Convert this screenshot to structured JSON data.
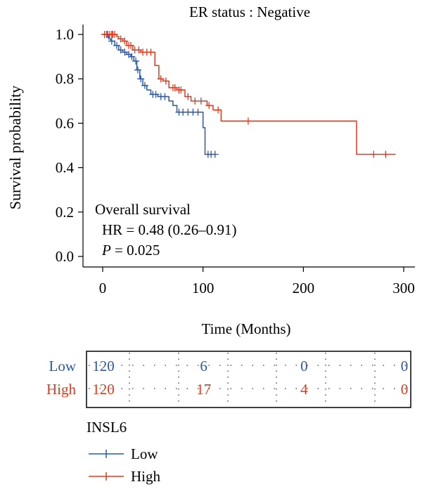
{
  "chart_data": {
    "type": "line",
    "title": "ER status : Negative",
    "xlabel": "Time (Months)",
    "ylabel": "Survival probability",
    "xlim": [
      0,
      300
    ],
    "ylim": [
      0,
      1
    ],
    "x_ticks": [
      0,
      100,
      200,
      300
    ],
    "y_ticks": [
      "0.0",
      "0.2",
      "0.4",
      "0.6",
      "0.8",
      "1.0"
    ],
    "annotation": {
      "line1": "Overall survival",
      "line2": "HR = 0.48 (0.26–0.91)",
      "p_label": "P",
      "p_value": "= 0.025"
    },
    "series": [
      {
        "name": "Low",
        "color": "#2a5aa6",
        "steps": [
          [
            0,
            1.0
          ],
          [
            6,
            0.98
          ],
          [
            8,
            0.97
          ],
          [
            12,
            0.95
          ],
          [
            16,
            0.93
          ],
          [
            20,
            0.92
          ],
          [
            24,
            0.91
          ],
          [
            28,
            0.9
          ],
          [
            31,
            0.88
          ],
          [
            34,
            0.84
          ],
          [
            37,
            0.8
          ],
          [
            40,
            0.77
          ],
          [
            44,
            0.75
          ],
          [
            48,
            0.73
          ],
          [
            55,
            0.72
          ],
          [
            66,
            0.7
          ],
          [
            70,
            0.68
          ],
          [
            74,
            0.65
          ],
          [
            100,
            0.58
          ],
          [
            102,
            0.46
          ],
          [
            112,
            0.46
          ]
        ],
        "censors": [
          [
            2,
            1.0
          ],
          [
            4,
            1.0
          ],
          [
            9,
            0.97
          ],
          [
            14,
            0.95
          ],
          [
            18,
            0.93
          ],
          [
            22,
            0.92
          ],
          [
            26,
            0.91
          ],
          [
            29,
            0.9
          ],
          [
            33,
            0.88
          ],
          [
            35,
            0.84
          ],
          [
            38,
            0.8
          ],
          [
            42,
            0.77
          ],
          [
            50,
            0.73
          ],
          [
            53,
            0.73
          ],
          [
            58,
            0.72
          ],
          [
            62,
            0.72
          ],
          [
            76,
            0.65
          ],
          [
            80,
            0.65
          ],
          [
            85,
            0.65
          ],
          [
            90,
            0.65
          ],
          [
            95,
            0.65
          ],
          [
            105,
            0.46
          ],
          [
            108,
            0.46
          ],
          [
            112,
            0.46
          ]
        ]
      },
      {
        "name": "High",
        "color": "#e03a1e",
        "steps": [
          [
            0,
            1.0
          ],
          [
            14,
            0.99
          ],
          [
            16,
            0.98
          ],
          [
            20,
            0.97
          ],
          [
            24,
            0.95
          ],
          [
            30,
            0.93
          ],
          [
            38,
            0.92
          ],
          [
            52,
            0.86
          ],
          [
            56,
            0.8
          ],
          [
            60,
            0.79
          ],
          [
            66,
            0.76
          ],
          [
            74,
            0.75
          ],
          [
            82,
            0.72
          ],
          [
            88,
            0.7
          ],
          [
            104,
            0.68
          ],
          [
            110,
            0.66
          ],
          [
            118,
            0.61
          ],
          [
            253,
            0.46
          ],
          [
            292,
            0.46
          ]
        ],
        "censors": [
          [
            2,
            1.0
          ],
          [
            4,
            1.0
          ],
          [
            5,
            1.0
          ],
          [
            7,
            1.0
          ],
          [
            9,
            1.0
          ],
          [
            10,
            1.0
          ],
          [
            12,
            1.0
          ],
          [
            18,
            0.98
          ],
          [
            22,
            0.97
          ],
          [
            26,
            0.95
          ],
          [
            28,
            0.95
          ],
          [
            32,
            0.93
          ],
          [
            36,
            0.93
          ],
          [
            40,
            0.92
          ],
          [
            44,
            0.92
          ],
          [
            48,
            0.92
          ],
          [
            58,
            0.8
          ],
          [
            63,
            0.79
          ],
          [
            70,
            0.76
          ],
          [
            72,
            0.76
          ],
          [
            76,
            0.75
          ],
          [
            78,
            0.75
          ],
          [
            85,
            0.72
          ],
          [
            92,
            0.7
          ],
          [
            98,
            0.7
          ],
          [
            106,
            0.68
          ],
          [
            115,
            0.66
          ],
          [
            145,
            0.61
          ],
          [
            270,
            0.46
          ],
          [
            282,
            0.46
          ]
        ]
      }
    ],
    "risk_table": {
      "time_points": [
        0,
        100,
        200,
        300
      ],
      "rows": [
        {
          "label": "Low",
          "color": "#2a5aa6",
          "values": [
            "120",
            "6",
            "0",
            "0"
          ]
        },
        {
          "label": "High",
          "color": "#e03a1e",
          "values": [
            "120",
            "17",
            "4",
            "0"
          ]
        }
      ]
    },
    "legend": {
      "title": "INSL6",
      "items": [
        {
          "label": "Low",
          "color": "#2a5aa6"
        },
        {
          "label": "High",
          "color": "#e03a1e"
        }
      ]
    }
  }
}
